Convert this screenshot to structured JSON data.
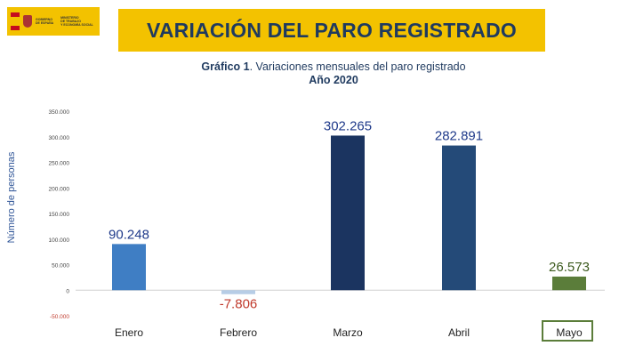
{
  "logo": {
    "gov_line1": "GOBIERNO",
    "gov_line2": "DE ESPAÑA",
    "ministry_line1": "MINISTERIO",
    "ministry_line2": "DE TRABAJO",
    "ministry_line3": "Y ECONOMÍA SOCIAL"
  },
  "banner_title": "VARIACIÓN DEL PARO REGISTRADO",
  "subtitle_prefix": "Gráfico 1",
  "subtitle_rest": ". Variaciones mensuales del paro registrado",
  "year_label": "Año 2020",
  "colors": {
    "banner": "#f3c200",
    "title_text": "#1f3a5f",
    "negative_label": "#c0392b",
    "highlight_box": "#5b7d3a"
  },
  "chart_data": {
    "type": "bar",
    "title": "Gráfico 1. Variaciones mensuales del paro registrado",
    "subtitle": "Año 2020",
    "ylabel": "Número de personas",
    "xlabel": "",
    "categories": [
      "Enero",
      "Febrero",
      "Marzo",
      "Abril",
      "Mayo"
    ],
    "values": [
      90248,
      -7806,
      302265,
      282891,
      26573
    ],
    "value_labels": [
      "90.248",
      "-7.806",
      "302.265",
      "282.891",
      "26.573"
    ],
    "bar_colors": [
      "#3f7ec4",
      "#b7cde6",
      "#1b3460",
      "#244a78",
      "#5b7d3a"
    ],
    "label_colors": [
      "#1f3a8a",
      "#c0392b",
      "#1f3a8a",
      "#1f3a8a",
      "#3c5a1e"
    ],
    "ylim": [
      -50000,
      350000
    ],
    "yticks": [
      -50000,
      0,
      50000,
      100000,
      150000,
      200000,
      250000,
      300000,
      350000
    ],
    "ytick_labels": [
      "-50.000",
      "0",
      "50.000",
      "100.000",
      "150.000",
      "200.000",
      "250.000",
      "300.000",
      "350.000"
    ],
    "highlighted_category": "Mayo",
    "grid": false,
    "legend": "none"
  }
}
